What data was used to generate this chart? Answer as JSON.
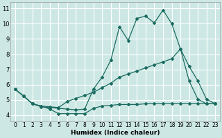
{
  "xlabel": "Humidex (Indice chaleur)",
  "bg_color": "#cde8e4",
  "grid_color": "#ffffff",
  "line_color": "#1a6b60",
  "xlim": [
    -0.5,
    23.5
  ],
  "ylim": [
    3.6,
    11.4
  ],
  "xticks": [
    0,
    1,
    2,
    3,
    4,
    5,
    6,
    7,
    8,
    9,
    10,
    11,
    12,
    13,
    14,
    15,
    16,
    17,
    18,
    19,
    20,
    21,
    22,
    23
  ],
  "yticks": [
    4,
    5,
    6,
    7,
    8,
    9,
    10,
    11
  ],
  "line_top_x": [
    0,
    1,
    2,
    3,
    4,
    5,
    6,
    7,
    8,
    9,
    10,
    11,
    12,
    13,
    14,
    15,
    16,
    17,
    18,
    19,
    20,
    21,
    22,
    23
  ],
  "line_top_y": [
    5.7,
    5.25,
    4.75,
    4.55,
    4.5,
    4.45,
    4.4,
    4.35,
    4.4,
    5.7,
    6.5,
    7.6,
    9.8,
    8.9,
    10.35,
    10.5,
    10.05,
    10.9,
    10.0,
    8.35,
    6.25,
    5.05,
    4.75,
    4.75
  ],
  "line_mid_x": [
    0,
    1,
    2,
    3,
    4,
    5,
    6,
    7,
    8,
    9,
    10,
    11,
    12,
    13,
    14,
    15,
    16,
    17,
    18,
    19,
    20,
    21,
    22,
    23
  ],
  "line_mid_y": [
    5.7,
    5.25,
    4.75,
    4.6,
    4.55,
    4.5,
    4.9,
    5.1,
    5.3,
    5.5,
    5.8,
    6.1,
    6.5,
    6.7,
    6.9,
    7.1,
    7.3,
    7.5,
    7.7,
    8.35,
    7.2,
    6.25,
    5.05,
    4.75
  ],
  "line_bot_x": [
    0,
    1,
    2,
    3,
    4,
    5,
    6,
    7,
    8,
    9,
    10,
    11,
    12,
    13,
    14,
    15,
    16,
    17,
    18,
    19,
    20,
    21,
    22,
    23
  ],
  "line_bot_y": [
    5.7,
    5.25,
    4.75,
    4.6,
    4.4,
    4.1,
    4.1,
    4.1,
    4.1,
    4.45,
    4.6,
    4.65,
    4.7,
    4.7,
    4.7,
    4.75,
    4.75,
    4.75,
    4.75,
    4.75,
    4.75,
    4.75,
    4.75,
    4.75
  ],
  "xlabel_fontsize": 6.5,
  "tick_fontsize_x": 5.5,
  "tick_fontsize_y": 6.0
}
